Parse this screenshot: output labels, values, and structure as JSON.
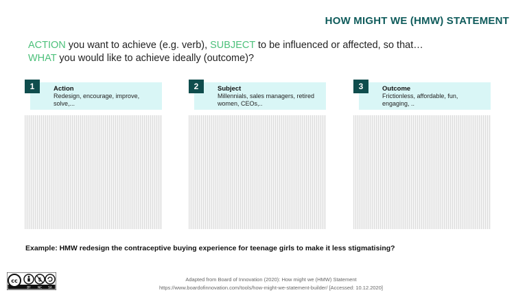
{
  "header": {
    "title": "HOW MIGHT WE (HMW) STATEMENT"
  },
  "prompt": {
    "kw_action": "ACTION",
    "text_1": " you want to achieve (e.g. verb), ",
    "kw_subject": "SUBJECT",
    "text_2": " to be influenced or affected, so that…",
    "kw_what": "WHAT",
    "text_3": " you would like to achieve ideally (outcome)?"
  },
  "columns": [
    {
      "number": "1",
      "title": "Action",
      "description": "Redesign, encourage, improve, solve,..."
    },
    {
      "number": "2",
      "title": "Subject",
      "description": "Millennials, sales managers, retired women, CEOs,.."
    },
    {
      "number": "3",
      "title": "Outcome",
      "description": "Frictionless, affordable, fun, engaging, .."
    }
  ],
  "example": "Example: HMW redesign the contraceptive buying experience for teenage girls to make it less stigmatising?",
  "license": {
    "labels": [
      "BY",
      "NC",
      "SA"
    ]
  },
  "credit": {
    "line1": "Adapted from Board of Innovation (2020): How might we (HMW) Statement",
    "line2": "https://www.boardofinnovation.com/tools/how-might-we-statement-builder/ [Accessed: 10.12.2020]"
  }
}
